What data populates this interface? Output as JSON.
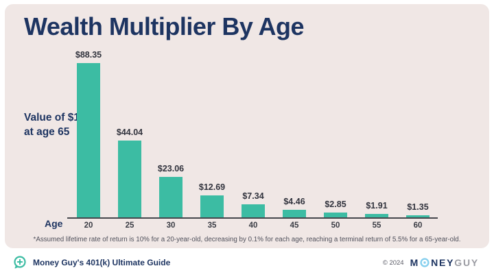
{
  "chart": {
    "title": "Wealth Multiplier By Age",
    "annotation_line1": "Value of $1",
    "annotation_line2": "at age 65",
    "xlabel": "Age",
    "footnote": "*Assumed lifetime rate of return is 10% for a 20-year-old, decreasing by 0.1% for each age, reaching a terminal return of 5.5% for a 65-year-old."
  },
  "chart_data": {
    "type": "bar",
    "title": "Wealth Multiplier By Age",
    "xlabel": "Age",
    "ylabel": "Value of $1 at age 65",
    "categories": [
      "20",
      "25",
      "30",
      "35",
      "40",
      "45",
      "50",
      "55",
      "60"
    ],
    "values": [
      88.35,
      44.04,
      23.06,
      12.69,
      7.34,
      4.46,
      2.85,
      1.91,
      1.35
    ],
    "value_labels": [
      "$88.35",
      "$44.04",
      "$23.06",
      "$12.69",
      "$7.34",
      "$4.46",
      "$2.85",
      "$1.91",
      "$1.35"
    ],
    "ylim": [
      0,
      90
    ],
    "grid": false,
    "legend": false,
    "bar_color": "#3CBCA3",
    "footnote": "*Assumed lifetime rate of return is 10% for a 20-year-old, decreasing by 0.1% for each age, reaching a terminal return of 5.5% for a 65-year-old."
  },
  "footer": {
    "title": "Money Guy's 401(k) Ultimate Guide",
    "copyright": "© 2024",
    "logo": {
      "part_m": "M",
      "part_ney": "NEY",
      "part_guy": "GUY"
    }
  },
  "colors": {
    "card_background": "#F0E7E5",
    "navy": "#1D3461",
    "teal": "#3CBCA3",
    "label_charcoal": "#31333D",
    "logo_gray": "#9B9CA3",
    "logo_light_blue": "#85CFEE"
  }
}
